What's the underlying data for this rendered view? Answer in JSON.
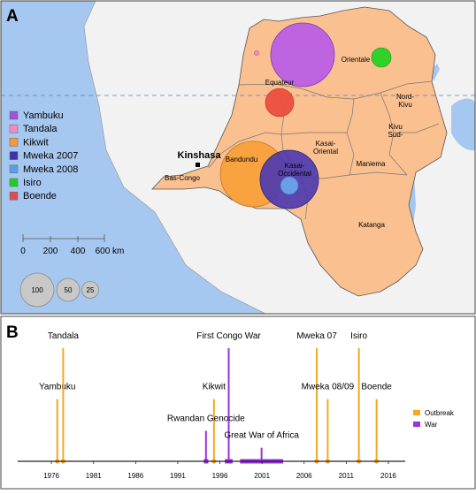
{
  "panel_a": {
    "label": "A",
    "colors": {
      "water": "#a6c8f0",
      "ocean_deep": "#8ab8ee",
      "land_other": "#f2f2f2",
      "drc": "#fbc08f",
      "border": "#555555"
    },
    "equator_label": "",
    "capital": "Kinshasa",
    "regions": [
      {
        "id": "bas-congo",
        "label": "Bas-Congo"
      },
      {
        "id": "bandundu",
        "label": "Bandundu"
      },
      {
        "id": "equateur",
        "label": "Equateur"
      },
      {
        "id": "orientale",
        "label": "Orientale"
      },
      {
        "id": "nord-kivu",
        "label": "Nord-\nKivu"
      },
      {
        "id": "sud-kivu",
        "label": "Kivu\nSud-"
      },
      {
        "id": "maniema",
        "label": "Maniema"
      },
      {
        "id": "kasai-oriental",
        "label": "Kasai-\nOriental"
      },
      {
        "id": "kasai-occidental",
        "label": "Kasai-\nOccidental"
      },
      {
        "id": "katanga",
        "label": "Katanga"
      }
    ],
    "legend": [
      {
        "name": "Yambuku",
        "color": "#9b57d9"
      },
      {
        "name": "Tandala",
        "color": "#f28ac4"
      },
      {
        "name": "Kikwit",
        "color": "#f59a34"
      },
      {
        "name": "Mweka 2007",
        "color": "#3d35a5"
      },
      {
        "name": "Mweka 2008",
        "color": "#5aa0e6"
      },
      {
        "name": "Isiro",
        "color": "#22cc22"
      },
      {
        "name": "Boende",
        "color": "#e04a55"
      }
    ],
    "outbreak_circles": [
      {
        "name": "Yambuku",
        "color": "#b95ce8",
        "size": 100
      },
      {
        "name": "Tandala",
        "color": "#f28ac4",
        "size": 2
      },
      {
        "name": "Kikwit",
        "color": "#f7a03a",
        "size": 100
      },
      {
        "name": "Mweka 2007",
        "color": "#4a37b0",
        "size": 100
      },
      {
        "name": "Mweka 2008",
        "color": "#6aaff0",
        "size": 25
      },
      {
        "name": "Isiro",
        "color": "#1fd41f",
        "size": 25
      },
      {
        "name": "Boende",
        "color": "#ee4a3c",
        "size": 50
      }
    ],
    "scale_bar": {
      "ticks": [
        "0",
        "200",
        "400",
        "600 km"
      ]
    },
    "size_legend": [
      "100",
      "50",
      "25"
    ]
  },
  "panel_b": {
    "label": "B",
    "legend": [
      {
        "name": "Outbreak",
        "color": "#f5a623"
      },
      {
        "name": "War",
        "color": "#9b30e0"
      }
    ],
    "chart_data": {
      "type": "timeline",
      "x_range": [
        1972,
        2018
      ],
      "x_ticks": [
        "1976",
        "1981",
        "1986",
        "1991",
        "1996",
        "2001",
        "2006",
        "2011",
        "2016"
      ],
      "outbreaks": [
        {
          "name": "Yambuku",
          "year": 1976.7,
          "height": 0.55
        },
        {
          "name": "Tandala",
          "year": 1977.4,
          "height": 1.0
        },
        {
          "name": "Kikwit",
          "year": 1995.3,
          "height": 0.55
        },
        {
          "name": "Mweka 07",
          "year": 2007.5,
          "height": 1.0
        },
        {
          "name": "Mweka 08/09",
          "year": 2008.8,
          "height": 0.55
        },
        {
          "name": "Isiro",
          "year": 2012.5,
          "height": 1.0
        },
        {
          "name": "Boende",
          "year": 2014.6,
          "height": 0.55
        }
      ],
      "wars": [
        {
          "name": "Rwandan Genocide",
          "start": 1994.2,
          "end": 1994.5,
          "height": 0.27
        },
        {
          "name": "First Congo War",
          "start": 1996.7,
          "end": 1997.4,
          "height": 1.0
        },
        {
          "name": "Great War of Africa",
          "start": 1998.5,
          "end": 2003.4,
          "height": 0.12
        }
      ]
    }
  }
}
